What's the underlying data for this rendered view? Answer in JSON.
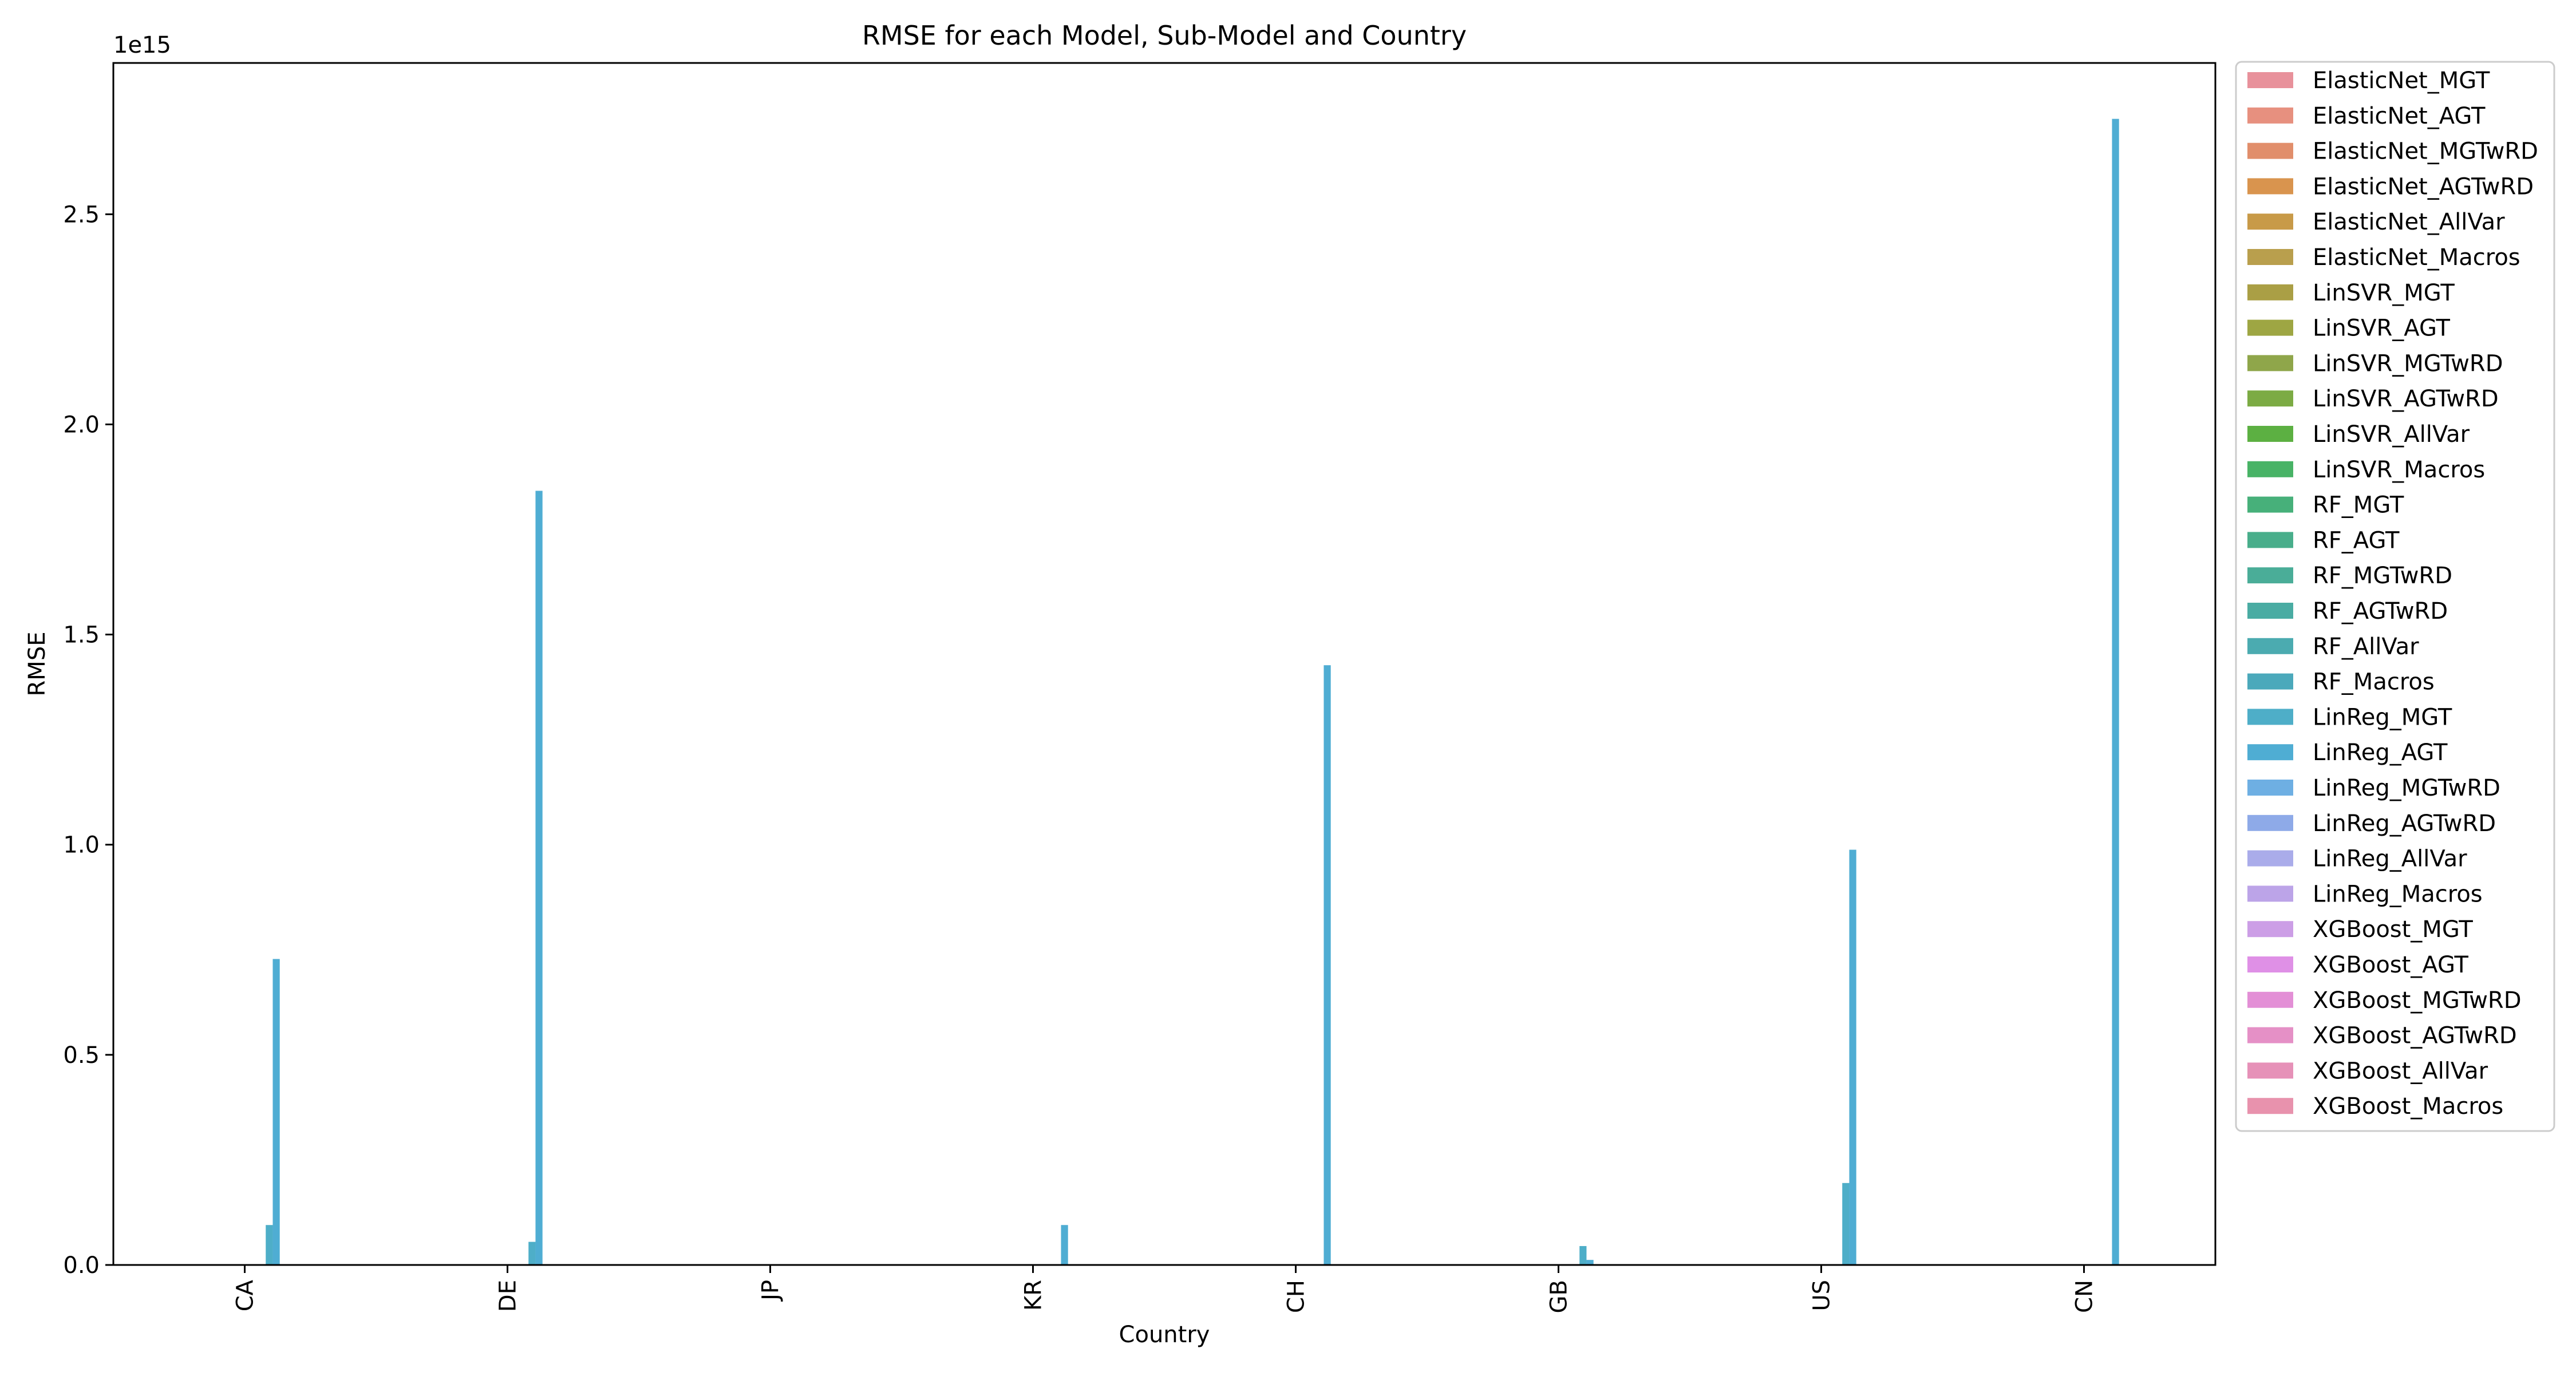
{
  "chart_data": {
    "type": "bar",
    "title": "RMSE for each Model, Sub-Model and Country",
    "xlabel": "Country",
    "ylabel": "RMSE",
    "y_offset_label": "1e15",
    "y_scale": 1000000000000000.0,
    "ylim": [
      0,
      2.86
    ],
    "yticks": [
      0.0,
      0.5,
      1.0,
      1.5,
      2.0,
      2.5
    ],
    "ytick_labels": [
      "0.0",
      "0.5",
      "1.0",
      "1.5",
      "2.0",
      "2.5"
    ],
    "categories": [
      "CA",
      "DE",
      "JP",
      "KR",
      "CH",
      "GB",
      "US",
      "CN"
    ],
    "grid": false,
    "legend_position": "outside-right",
    "series": [
      {
        "name": "ElasticNet_MGT",
        "color": "#e8919b",
        "values": [
          0,
          0,
          0,
          0,
          0,
          0,
          0,
          0
        ]
      },
      {
        "name": "ElasticNet_AGT",
        "color": "#e7907f",
        "values": [
          0,
          0,
          0,
          0,
          0,
          0,
          0,
          0
        ]
      },
      {
        "name": "ElasticNet_MGTwRD",
        "color": "#e18e6b",
        "values": [
          0,
          0,
          0,
          0,
          0,
          0,
          0,
          0
        ]
      },
      {
        "name": "ElasticNet_AGTwRD",
        "color": "#d9944e",
        "values": [
          0,
          0,
          0,
          0,
          0,
          0,
          0,
          0
        ]
      },
      {
        "name": "ElasticNet_AllVar",
        "color": "#c89a48",
        "values": [
          0,
          0,
          0,
          0,
          0,
          0,
          0,
          0
        ]
      },
      {
        "name": "ElasticNet_Macros",
        "color": "#b99f4d",
        "values": [
          0,
          0,
          0,
          0,
          0,
          0,
          0,
          0
        ]
      },
      {
        "name": "LinSVR_MGT",
        "color": "#aa9f45",
        "values": [
          0,
          0,
          0,
          0,
          0,
          0,
          0,
          0
        ]
      },
      {
        "name": "LinSVR_AGT",
        "color": "#9ea643",
        "values": [
          0,
          0,
          0,
          0,
          0,
          0,
          0,
          0
        ]
      },
      {
        "name": "LinSVR_MGTwRD",
        "color": "#8fa64a",
        "values": [
          0,
          0,
          0,
          0,
          0,
          0,
          0,
          0
        ]
      },
      {
        "name": "LinSVR_AGTwRD",
        "color": "#7cab44",
        "values": [
          0,
          0,
          0,
          0,
          0,
          0,
          0,
          0
        ]
      },
      {
        "name": "LinSVR_AllVar",
        "color": "#5cb042",
        "values": [
          0,
          0,
          0,
          0,
          0,
          0,
          0,
          0
        ]
      },
      {
        "name": "LinSVR_Macros",
        "color": "#48b366",
        "values": [
          0,
          0,
          0,
          0,
          0,
          0,
          0,
          0
        ]
      },
      {
        "name": "RF_MGT",
        "color": "#47b07a",
        "values": [
          0,
          0,
          0,
          0,
          0,
          0,
          0,
          0
        ]
      },
      {
        "name": "RF_AGT",
        "color": "#49ae8b",
        "values": [
          0,
          0,
          0,
          0,
          0,
          0,
          0,
          0
        ]
      },
      {
        "name": "RF_MGTwRD",
        "color": "#4aad98",
        "values": [
          0,
          0,
          0,
          0,
          0,
          0,
          0,
          0
        ]
      },
      {
        "name": "RF_AGTwRD",
        "color": "#4aaca3",
        "values": [
          0,
          0,
          0,
          0,
          0,
          0,
          0,
          0
        ]
      },
      {
        "name": "RF_AllVar",
        "color": "#4babb0",
        "values": [
          0,
          0,
          0,
          0,
          0,
          0,
          0,
          0
        ]
      },
      {
        "name": "RF_Macros",
        "color": "#4ba9bb",
        "values": [
          0,
          0,
          0,
          0,
          0,
          0,
          0,
          0
        ]
      },
      {
        "name": "LinReg_MGT",
        "color": "#4eaec8",
        "values": [
          0.095,
          0.055,
          0,
          0,
          0,
          0.045,
          0.195,
          0
        ]
      },
      {
        "name": "LinReg_AGT",
        "color": "#4fadd3",
        "values": [
          0.728,
          1.842,
          0,
          0.095,
          1.427,
          0.012,
          0.988,
          2.727
        ]
      },
      {
        "name": "LinReg_MGTwRD",
        "color": "#6eafe3",
        "values": [
          0,
          0,
          0,
          0,
          0,
          0,
          0,
          0
        ]
      },
      {
        "name": "LinReg_AGTwRD",
        "color": "#8eaae8",
        "values": [
          0,
          0,
          0,
          0,
          0,
          0,
          0,
          0
        ]
      },
      {
        "name": "LinReg_AllVar",
        "color": "#aaacea",
        "values": [
          0,
          0,
          0,
          0,
          0,
          0,
          0,
          0
        ]
      },
      {
        "name": "LinReg_Macros",
        "color": "#bca4e8",
        "values": [
          0,
          0,
          0,
          0,
          0,
          0,
          0,
          0
        ]
      },
      {
        "name": "XGBoost_MGT",
        "color": "#cc9ee6",
        "values": [
          0,
          0,
          0,
          0,
          0,
          0,
          0,
          0
        ]
      },
      {
        "name": "XGBoost_AGT",
        "color": "#df90e6",
        "values": [
          0,
          0,
          0,
          0,
          0,
          0,
          0,
          0
        ]
      },
      {
        "name": "XGBoost_MGTwRD",
        "color": "#e38fd6",
        "values": [
          0,
          0,
          0,
          0,
          0,
          0,
          0,
          0
        ]
      },
      {
        "name": "XGBoost_AGTwRD",
        "color": "#e590c6",
        "values": [
          0,
          0,
          0,
          0,
          0,
          0,
          0,
          0
        ]
      },
      {
        "name": "XGBoost_AllVar",
        "color": "#e691b8",
        "values": [
          0,
          0,
          0,
          0,
          0,
          0,
          0,
          0
        ]
      },
      {
        "name": "XGBoost_Macros",
        "color": "#e892ad",
        "values": [
          0,
          0,
          0,
          0,
          0,
          0,
          0,
          0
        ]
      }
    ]
  }
}
